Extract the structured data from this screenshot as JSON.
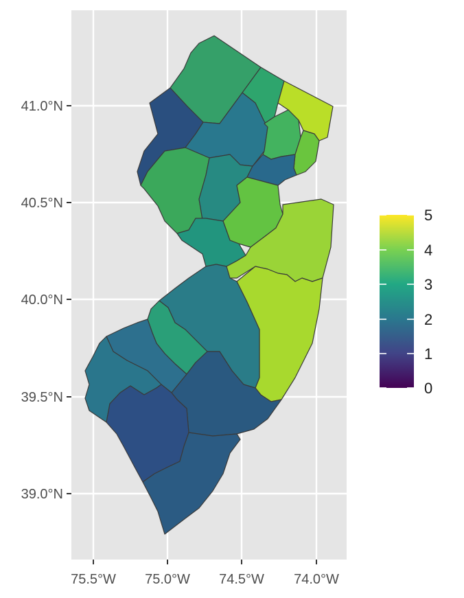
{
  "map": {
    "x_ticks": [
      "75.5°W",
      "75.0°W",
      "74.5°W",
      "74.0°W"
    ],
    "y_ticks": [
      "41.0°N",
      "40.5°N",
      "40.0°N",
      "39.5°N",
      "39.0°N"
    ]
  },
  "legend": {
    "labels": [
      "5",
      "4",
      "3",
      "2",
      "1",
      "0"
    ],
    "range": [
      0,
      5
    ]
  },
  "colors": {
    "panel_background": "#e5e5e5",
    "grid": "#ffffff",
    "county_border": "#3a3a3a",
    "scale": [
      "#440154",
      "#3b528b",
      "#21908c",
      "#5dc863",
      "#fde725"
    ]
  },
  "counties": [
    {
      "id": "sussex",
      "value": 3.1,
      "fill": "#35a069"
    },
    {
      "id": "passaic",
      "value": 3.0,
      "fill": "#2ea56d"
    },
    {
      "id": "bergen",
      "value": 4.5,
      "fill": "#bade28"
    },
    {
      "id": "warren",
      "value": 1.8,
      "fill": "#2a4f7f"
    },
    {
      "id": "morris",
      "value": 2.2,
      "fill": "#29788e"
    },
    {
      "id": "essex",
      "value": 3.4,
      "fill": "#43b35f"
    },
    {
      "id": "hudson",
      "value": 3.8,
      "fill": "#6ac53e"
    },
    {
      "id": "hunterdon",
      "value": 3.3,
      "fill": "#3ba85b"
    },
    {
      "id": "somerset",
      "value": 2.5,
      "fill": "#278a82"
    },
    {
      "id": "union",
      "value": 2.0,
      "fill": "#29698c"
    },
    {
      "id": "middlesex",
      "value": 3.9,
      "fill": "#63c342"
    },
    {
      "id": "mercer",
      "value": 2.8,
      "fill": "#22957e"
    },
    {
      "id": "monmouth",
      "value": 4.3,
      "fill": "#9ad437"
    },
    {
      "id": "ocean",
      "value": 4.5,
      "fill": "#a8d92e"
    },
    {
      "id": "burlington",
      "value": 2.4,
      "fill": "#2a7c88"
    },
    {
      "id": "camden",
      "value": 2.8,
      "fill": "#2a9f78"
    },
    {
      "id": "gloucester",
      "value": 2.3,
      "fill": "#2d708e"
    },
    {
      "id": "salem",
      "value": 2.3,
      "fill": "#2a768c"
    },
    {
      "id": "atlantic",
      "value": 1.9,
      "fill": "#2a5980"
    },
    {
      "id": "cumberland",
      "value": 1.8,
      "fill": "#2d4f84"
    },
    {
      "id": "cape-may",
      "value": 1.9,
      "fill": "#2b5b83"
    }
  ]
}
